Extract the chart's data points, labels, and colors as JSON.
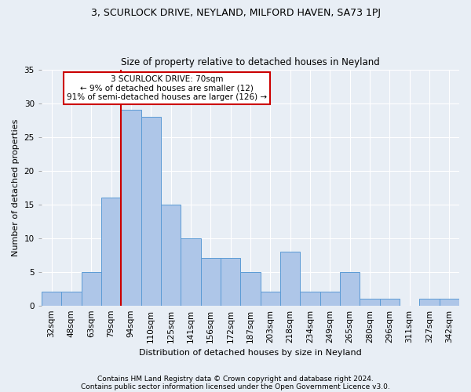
{
  "title": "3, SCURLOCK DRIVE, NEYLAND, MILFORD HAVEN, SA73 1PJ",
  "subtitle": "Size of property relative to detached houses in Neyland",
  "xlabel": "Distribution of detached houses by size in Neyland",
  "ylabel": "Number of detached properties",
  "categories": [
    "32sqm",
    "48sqm",
    "63sqm",
    "79sqm",
    "94sqm",
    "110sqm",
    "125sqm",
    "141sqm",
    "156sqm",
    "172sqm",
    "187sqm",
    "203sqm",
    "218sqm",
    "234sqm",
    "249sqm",
    "265sqm",
    "280sqm",
    "296sqm",
    "311sqm",
    "327sqm",
    "342sqm"
  ],
  "values": [
    2,
    2,
    5,
    16,
    29,
    28,
    15,
    10,
    7,
    7,
    5,
    2,
    8,
    2,
    2,
    5,
    1,
    1,
    0,
    1,
    1
  ],
  "bar_color": "#aec6e8",
  "bar_edge_color": "#5b9bd5",
  "vline_index": 3,
  "annotation_text": "3 SCURLOCK DRIVE: 70sqm\n← 9% of detached houses are smaller (12)\n91% of semi-detached houses are larger (126) →",
  "annotation_box_color": "#ffffff",
  "annotation_box_edge": "#cc0000",
  "footnote1": "Contains HM Land Registry data © Crown copyright and database right 2024.",
  "footnote2": "Contains public sector information licensed under the Open Government Licence v3.0.",
  "ylim": [
    0,
    35
  ],
  "yticks": [
    0,
    5,
    10,
    15,
    20,
    25,
    30,
    35
  ],
  "bg_color": "#e8eef5",
  "plot_bg_color": "#e8eef5",
  "grid_color": "#ffffff",
  "vline_color": "#cc0000",
  "title_fontsize": 9,
  "subtitle_fontsize": 8.5,
  "ylabel_fontsize": 8,
  "xlabel_fontsize": 8,
  "tick_fontsize": 7.5,
  "annot_fontsize": 7.5,
  "footnote_fontsize": 6.5
}
